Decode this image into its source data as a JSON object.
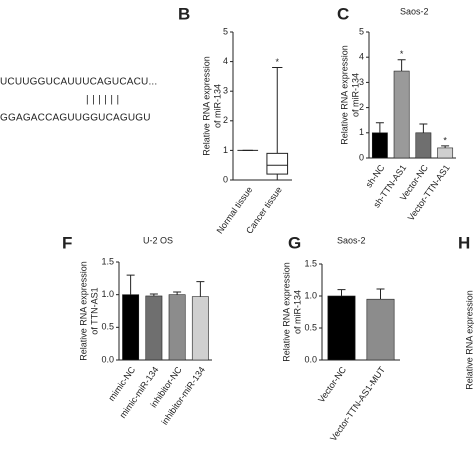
{
  "sequence": {
    "line1": "UCUUGGUCAUUUCAGUCACU...",
    "pairs": "||||||",
    "line2": "GGAGACCAGUUGGUCAGUGU"
  },
  "panel_h": {
    "panel": "H",
    "y_label": "Relative RNA expression"
  },
  "chart_data": [
    {
      "type": "box",
      "panel": "B",
      "y_label": [
        "Relative RNA expression",
        "of miR-134"
      ],
      "categories": [
        "Normal tissue",
        "Cancer tissue"
      ],
      "whisker_low": [
        1,
        0
      ],
      "q1": [
        1,
        0.2
      ],
      "median": [
        1,
        0.5
      ],
      "q3": [
        1,
        0.9
      ],
      "whisker_high": [
        1,
        3.8
      ],
      "significance": [
        null,
        "*"
      ],
      "color": "#222222",
      "ylim": [
        0,
        5
      ],
      "yticks": [
        0,
        1,
        2,
        3,
        4,
        5
      ]
    },
    {
      "type": "bar",
      "panel": "C",
      "title": "Saos-2",
      "y_label": [
        "Relative RNA expression",
        "of miR-134"
      ],
      "categories": [
        "sh-NC",
        "sh-TTN-AS1",
        "Vector-NC",
        "Vector-TTN-AS1"
      ],
      "values": [
        1,
        3.45,
        1,
        0.4
      ],
      "errors": [
        0.4,
        0.45,
        0.35,
        0.08
      ],
      "colors": [
        "#000000",
        "#9a9a9a",
        "#6f6f6f",
        "#cfcfcf"
      ],
      "significance": [
        null,
        "*",
        null,
        "*"
      ],
      "ylim": [
        0,
        5
      ],
      "yticks": [
        0,
        1,
        2,
        3,
        4,
        5
      ]
    },
    {
      "type": "bar",
      "panel": "F",
      "title": "U-2 OS",
      "y_label": [
        "Relative RNA expression",
        "of TTN-AS1"
      ],
      "categories": [
        "mimic-NC",
        "mimic-miR-134",
        "inhibitor-NC",
        "inhibitor-miR-134"
      ],
      "values": [
        1.0,
        0.98,
        1.0,
        0.97
      ],
      "errors": [
        0.3,
        0.03,
        0.04,
        0.23
      ],
      "colors": [
        "#000000",
        "#6f6f6f",
        "#8c8c8c",
        "#d0d0d0"
      ],
      "significance": [
        null,
        null,
        null,
        null
      ],
      "ylim": [
        0,
        1.5
      ],
      "yticks": [
        {
          "value": 0,
          "label": "0.0"
        },
        0.5,
        {
          "value": 1,
          "label": "1.0"
        },
        1.5
      ]
    },
    {
      "type": "bar",
      "panel": "G",
      "title": "Saos-2",
      "y_label": [
        "Relative RNA expression",
        "of miR-134"
      ],
      "categories": [
        "Vector-NC",
        "Vector-TTN-AS1-MUT"
      ],
      "values": [
        1.0,
        0.95
      ],
      "errors": [
        0.1,
        0.16
      ],
      "colors": [
        "#000000",
        "#8c8c8c"
      ],
      "significance": [
        null,
        null
      ],
      "ylim": [
        0,
        1.5
      ],
      "yticks": [
        {
          "value": 0,
          "label": "0.0"
        },
        0.5,
        {
          "value": 1,
          "label": "1.0"
        },
        1.5
      ]
    }
  ]
}
